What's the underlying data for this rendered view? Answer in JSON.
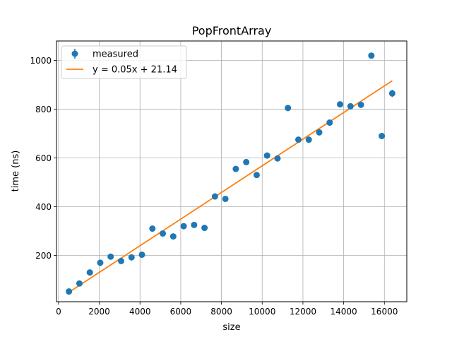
{
  "chart_data": {
    "type": "scatter",
    "title": "PopFrontArray",
    "xlabel": "size",
    "ylabel": "time (ns)",
    "xlim": [
      -100,
      17100
    ],
    "ylim": [
      10,
      1080
    ],
    "xticks": [
      0,
      2000,
      4000,
      6000,
      8000,
      10000,
      12000,
      14000,
      16000
    ],
    "yticks": [
      200,
      400,
      600,
      800,
      1000
    ],
    "grid": true,
    "legend_position": "top-left",
    "series": [
      {
        "name": "measured",
        "kind": "points-with-error",
        "color": "#1f77b4",
        "x": [
          512,
          1024,
          1536,
          2048,
          2560,
          3072,
          3584,
          4096,
          4608,
          5120,
          5632,
          6144,
          6656,
          7168,
          7680,
          8192,
          8704,
          9216,
          9728,
          10240,
          10752,
          11264,
          11776,
          12288,
          12800,
          13312,
          13824,
          14336,
          14848,
          15360,
          15872,
          16384
        ],
        "y": [
          52,
          85,
          130,
          170,
          195,
          177,
          192,
          203,
          310,
          290,
          278,
          320,
          325,
          313,
          442,
          432,
          555,
          583,
          530,
          610,
          598,
          805,
          675,
          675,
          705,
          745,
          820,
          812,
          818,
          1020,
          690,
          865
        ],
        "yerr": [
          3,
          3,
          3,
          3,
          3,
          3,
          3,
          3,
          3,
          3,
          3,
          3,
          3,
          3,
          3,
          3,
          3,
          3,
          3,
          3,
          3,
          3,
          4,
          4,
          4,
          5,
          10,
          12,
          8,
          5,
          8,
          15
        ]
      },
      {
        "name": "y = 0.05x + 21.14",
        "kind": "fit-line",
        "color": "#ff7f0e",
        "slope": 0.05466,
        "intercept": 21.14,
        "x_range": [
          512,
          16384
        ]
      }
    ]
  }
}
